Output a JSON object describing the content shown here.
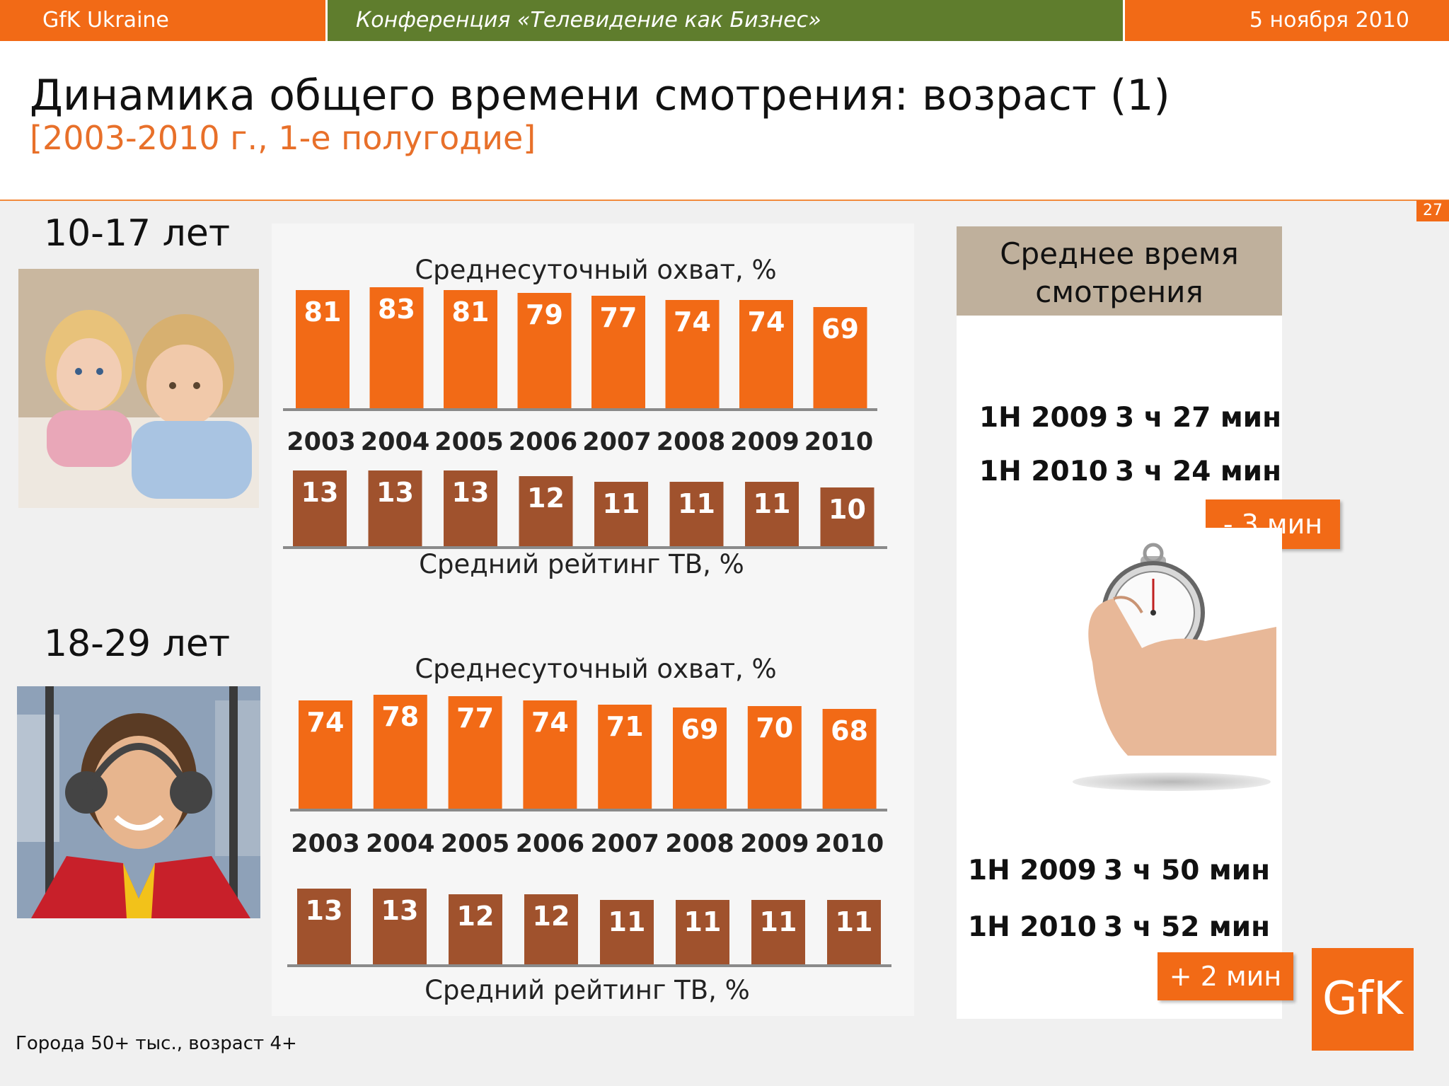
{
  "header": {
    "brand": "GfK Ukraine",
    "conference": "Конференция «Телевидение  как  Бизнес»",
    "date": "5 ноября 2010",
    "title": "Динамика общего времени смотрения: возраст (1)",
    "subtitle": "[2003-2010 г., 1-е полугодие]",
    "slide_number": "27"
  },
  "groups": [
    {
      "label": "10-17 лет"
    },
    {
      "label": "18-29 лет"
    }
  ],
  "chart_data": [
    {
      "type": "bar",
      "title": "Среднесуточный охват, %",
      "group": "10-17 лет",
      "categories": [
        "2003",
        "2004",
        "2005",
        "2006",
        "2007",
        "2008",
        "2009",
        "2010"
      ],
      "values": [
        81,
        83,
        81,
        79,
        77,
        74,
        74,
        69
      ],
      "color": "#f26a16"
    },
    {
      "type": "bar",
      "title": "Средний рейтинг ТВ, %",
      "group": "10-17 лет",
      "categories": [
        "2003",
        "2004",
        "2005",
        "2006",
        "2007",
        "2008",
        "2009",
        "2010"
      ],
      "values": [
        13,
        13,
        13,
        12,
        11,
        11,
        11,
        10
      ],
      "color": "#a0522d"
    },
    {
      "type": "bar",
      "title": "Среднесуточный охват, %",
      "group": "18-29 лет",
      "categories": [
        "2003",
        "2004",
        "2005",
        "2006",
        "2007",
        "2008",
        "2009",
        "2010"
      ],
      "values": [
        74,
        78,
        77,
        74,
        71,
        69,
        70,
        68
      ],
      "color": "#f26a16"
    },
    {
      "type": "bar",
      "title": "Средний рейтинг ТВ, %",
      "group": "18-29 лет",
      "categories": [
        "2003",
        "2004",
        "2005",
        "2006",
        "2007",
        "2008",
        "2009",
        "2010"
      ],
      "values": [
        13,
        13,
        12,
        12,
        11,
        11,
        11,
        11
      ],
      "color": "#a0522d"
    }
  ],
  "viewing_time": {
    "heading_line1": "Среднее время",
    "heading_line2": "смотрения",
    "g1": {
      "row1_period": "1Н 2009",
      "row1_value": "3 ч 27 мин",
      "row2_period": "1Н 2010",
      "row2_value": "3 ч 24 мин",
      "delta": "- 3 мин"
    },
    "g2": {
      "row1_period": "1Н 2009",
      "row1_value": "3 ч 50 мин",
      "row2_period": "1Н 2010",
      "row2_value": "3 ч 52 мин",
      "delta": "+ 2 мин"
    }
  },
  "logo_text": "GfK",
  "footnote": "Города 50+ тыс., возраст 4+"
}
